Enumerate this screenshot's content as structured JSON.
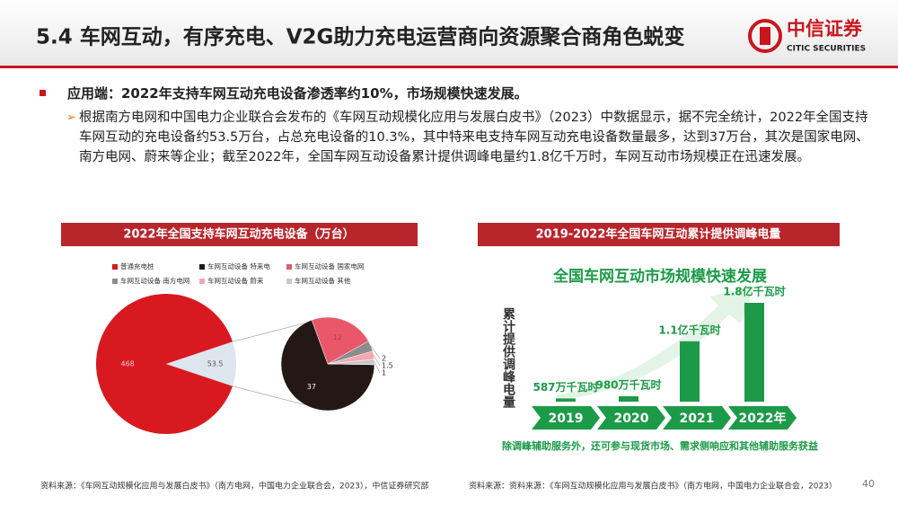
{
  "header": {
    "title": "5.4 车网互动，有序充电、V2G助力充电运营商向资源聚合商角色蜕变",
    "logo_cn": "中信证券",
    "logo_en": "CITIC SECURITIES"
  },
  "bullet": "应用端：2022年支持车网互动充电设备渗透率约10%，市场规模快速发展。",
  "paragraph": "根据南方电网和中国电力企业联合会发布的《车网互动规模化应用与发展白皮书》（2023）中数据显示，据不完全统计，2022年全国支持车网互动的充电设备约53.5万台，占总充电设备的10.3%，其中特来电支持车网互动充电设备数量最多，达到37万台，其次是国家电网、南方电网、蔚来等企业；截至2022年，全国车网互动设备累计提供调峰电量约1.8亿千万时，车网互动市场规模正在迅速发展。",
  "chart_data": [
    {
      "type": "pie",
      "title": "2022年全国支持车网互动充电设备（万台）",
      "categories": [
        "普通充电桩",
        "车网互动设备 特来电",
        "车网互动设备 国家电网",
        "车网互动设备 南方电网",
        "车网互动设备 蔚来",
        "车网互动设备 其他"
      ],
      "values": [
        468,
        37,
        12,
        2,
        1.5,
        1
      ],
      "colors": [
        "#d8191f",
        "#231815",
        "#e8586a",
        "#8c8c8c",
        "#f3a7b1",
        "#c8c8c8"
      ],
      "secondary_total": 53.5,
      "secondary_color": "#dfe5ee"
    },
    {
      "type": "bar",
      "title": "2019-2022年全国车网互动累计提供调峰电量",
      "subtitle": "全国车网互动市场规模快速发展",
      "y_label": "累计提供调峰电量",
      "categories": [
        "2019",
        "2020",
        "2021",
        "2022年"
      ],
      "values": [
        587,
        980,
        11000,
        18000
      ],
      "value_labels": [
        "587万千瓦时",
        "980万千瓦时",
        "1.1亿千瓦时",
        "1.8亿千瓦时"
      ],
      "color": "#1c9a48",
      "note": "除调峰辅助服务外，还可参与现货市场、需求侧响应和其他辅助服务获益"
    }
  ],
  "footer": {
    "source_left": "资料来源：《车网互动规模化应用与发展白皮书》（南方电网，中国电力企业联合会，2023），中信证券研究部",
    "source_right": "资料来源：资料来源：《车网互动规模化应用与发展白皮书》（南方电网，中国电力企业联合会，2023）",
    "page": "40"
  }
}
